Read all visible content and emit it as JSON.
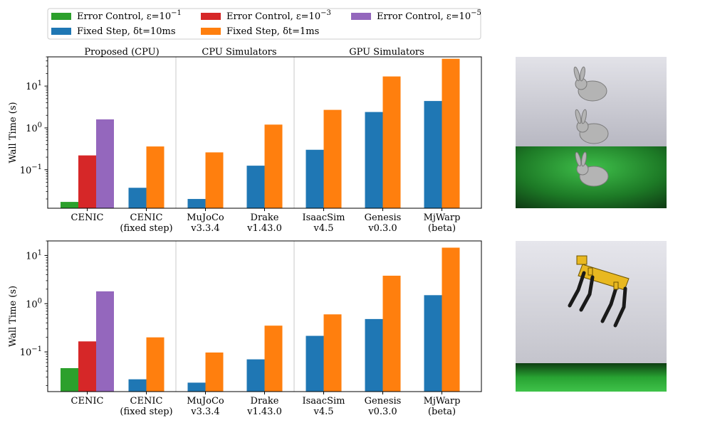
{
  "legend": {
    "entries": [
      {
        "key": "ec1",
        "label": "Error Control, ε=10",
        "sup": "−1",
        "color": "#2ca02c"
      },
      {
        "key": "fs10",
        "label": "Fixed Step, δt=10ms",
        "sup": "",
        "color": "#1f77b4"
      },
      {
        "key": "ec3",
        "label": "Error Control, ε=10",
        "sup": "−3",
        "color": "#d62728"
      },
      {
        "key": "fs1",
        "label": "Fixed Step, δt=1ms",
        "sup": "",
        "color": "#ff7f0e"
      },
      {
        "key": "ec5",
        "label": "Error Control, ε=10",
        "sup": "−5",
        "color": "#9467bd"
      }
    ]
  },
  "group_headers": [
    "Proposed (CPU)",
    "CPU Simulators",
    "GPU Simulators"
  ],
  "thumbnails": [
    {
      "name": "bunny-scene",
      "colors": {
        "sky": "#cfcfd6",
        "ground": "#1f8a2a",
        "object": "#bdbdbd"
      }
    },
    {
      "name": "quadruped-scene",
      "colors": {
        "sky": "#d6d6dc",
        "ground": "#2aa835",
        "object": "#e8b820"
      }
    }
  ],
  "chart_data": [
    {
      "type": "bar",
      "yscale": "log",
      "ylabel": "Wall Time (s)",
      "ylim": [
        0.012,
        50
      ],
      "yticks": [
        {
          "v": 0.1,
          "base": "10",
          "sup": "−1"
        },
        {
          "v": 1,
          "base": "10",
          "sup": "0"
        },
        {
          "v": 10,
          "base": "10",
          "sup": "1"
        }
      ],
      "categories": [
        {
          "line1": "CENIC",
          "line2": ""
        },
        {
          "line1": "CENIC",
          "line2": "(fixed step)"
        },
        {
          "line1": "MuJoCo",
          "line2": "v3.3.4"
        },
        {
          "line1": "Drake",
          "line2": "v1.43.0"
        },
        {
          "line1": "IsaacSim",
          "line2": "v4.5"
        },
        {
          "line1": "Genesis",
          "line2": "v0.3.0"
        },
        {
          "line1": "MjWarp",
          "line2": "(beta)"
        }
      ],
      "bars": [
        [
          {
            "series": "ec1",
            "value": 0.017
          },
          {
            "series": "ec3",
            "value": 0.22
          },
          {
            "series": "ec5",
            "value": 1.6
          }
        ],
        [
          {
            "series": "fs10",
            "value": 0.037
          },
          {
            "series": "fs1",
            "value": 0.36
          }
        ],
        [
          {
            "series": "fs10",
            "value": 0.02
          },
          {
            "series": "fs1",
            "value": 0.26
          }
        ],
        [
          {
            "series": "fs10",
            "value": 0.125
          },
          {
            "series": "fs1",
            "value": 1.2
          }
        ],
        [
          {
            "series": "fs10",
            "value": 0.3
          },
          {
            "series": "fs1",
            "value": 2.7
          }
        ],
        [
          {
            "series": "fs10",
            "value": 2.4
          },
          {
            "series": "fs1",
            "value": 17
          }
        ],
        [
          {
            "series": "fs10",
            "value": 4.4
          },
          {
            "series": "fs1",
            "value": 45
          }
        ]
      ]
    },
    {
      "type": "bar",
      "yscale": "log",
      "ylabel": "Wall Time (s)",
      "ylim": [
        0.015,
        20
      ],
      "yticks": [
        {
          "v": 0.1,
          "base": "10",
          "sup": "−1"
        },
        {
          "v": 1,
          "base": "10",
          "sup": "0"
        },
        {
          "v": 10,
          "base": "10",
          "sup": "1"
        }
      ],
      "categories": [
        {
          "line1": "CENIC",
          "line2": ""
        },
        {
          "line1": "CENIC",
          "line2": "(fixed step)"
        },
        {
          "line1": "MuJoCo",
          "line2": "v3.3.4"
        },
        {
          "line1": "Drake",
          "line2": "v1.43.0"
        },
        {
          "line1": "IsaacSim",
          "line2": "v4.5"
        },
        {
          "line1": "Genesis",
          "line2": "v0.3.0"
        },
        {
          "line1": "MjWarp",
          "line2": "(beta)"
        }
      ],
      "bars": [
        [
          {
            "series": "ec1",
            "value": 0.046
          },
          {
            "series": "ec3",
            "value": 0.165
          },
          {
            "series": "ec5",
            "value": 1.8
          }
        ],
        [
          {
            "series": "fs10",
            "value": 0.027
          },
          {
            "series": "fs1",
            "value": 0.2
          }
        ],
        [
          {
            "series": "fs10",
            "value": 0.023
          },
          {
            "series": "fs1",
            "value": 0.097
          }
        ],
        [
          {
            "series": "fs10",
            "value": 0.07
          },
          {
            "series": "fs1",
            "value": 0.35
          }
        ],
        [
          {
            "series": "fs10",
            "value": 0.215
          },
          {
            "series": "fs1",
            "value": 0.6
          }
        ],
        [
          {
            "series": "fs10",
            "value": 0.48
          },
          {
            "series": "fs1",
            "value": 3.8
          }
        ],
        [
          {
            "series": "fs10",
            "value": 1.5
          },
          {
            "series": "fs1",
            "value": 14.5
          }
        ]
      ]
    }
  ]
}
